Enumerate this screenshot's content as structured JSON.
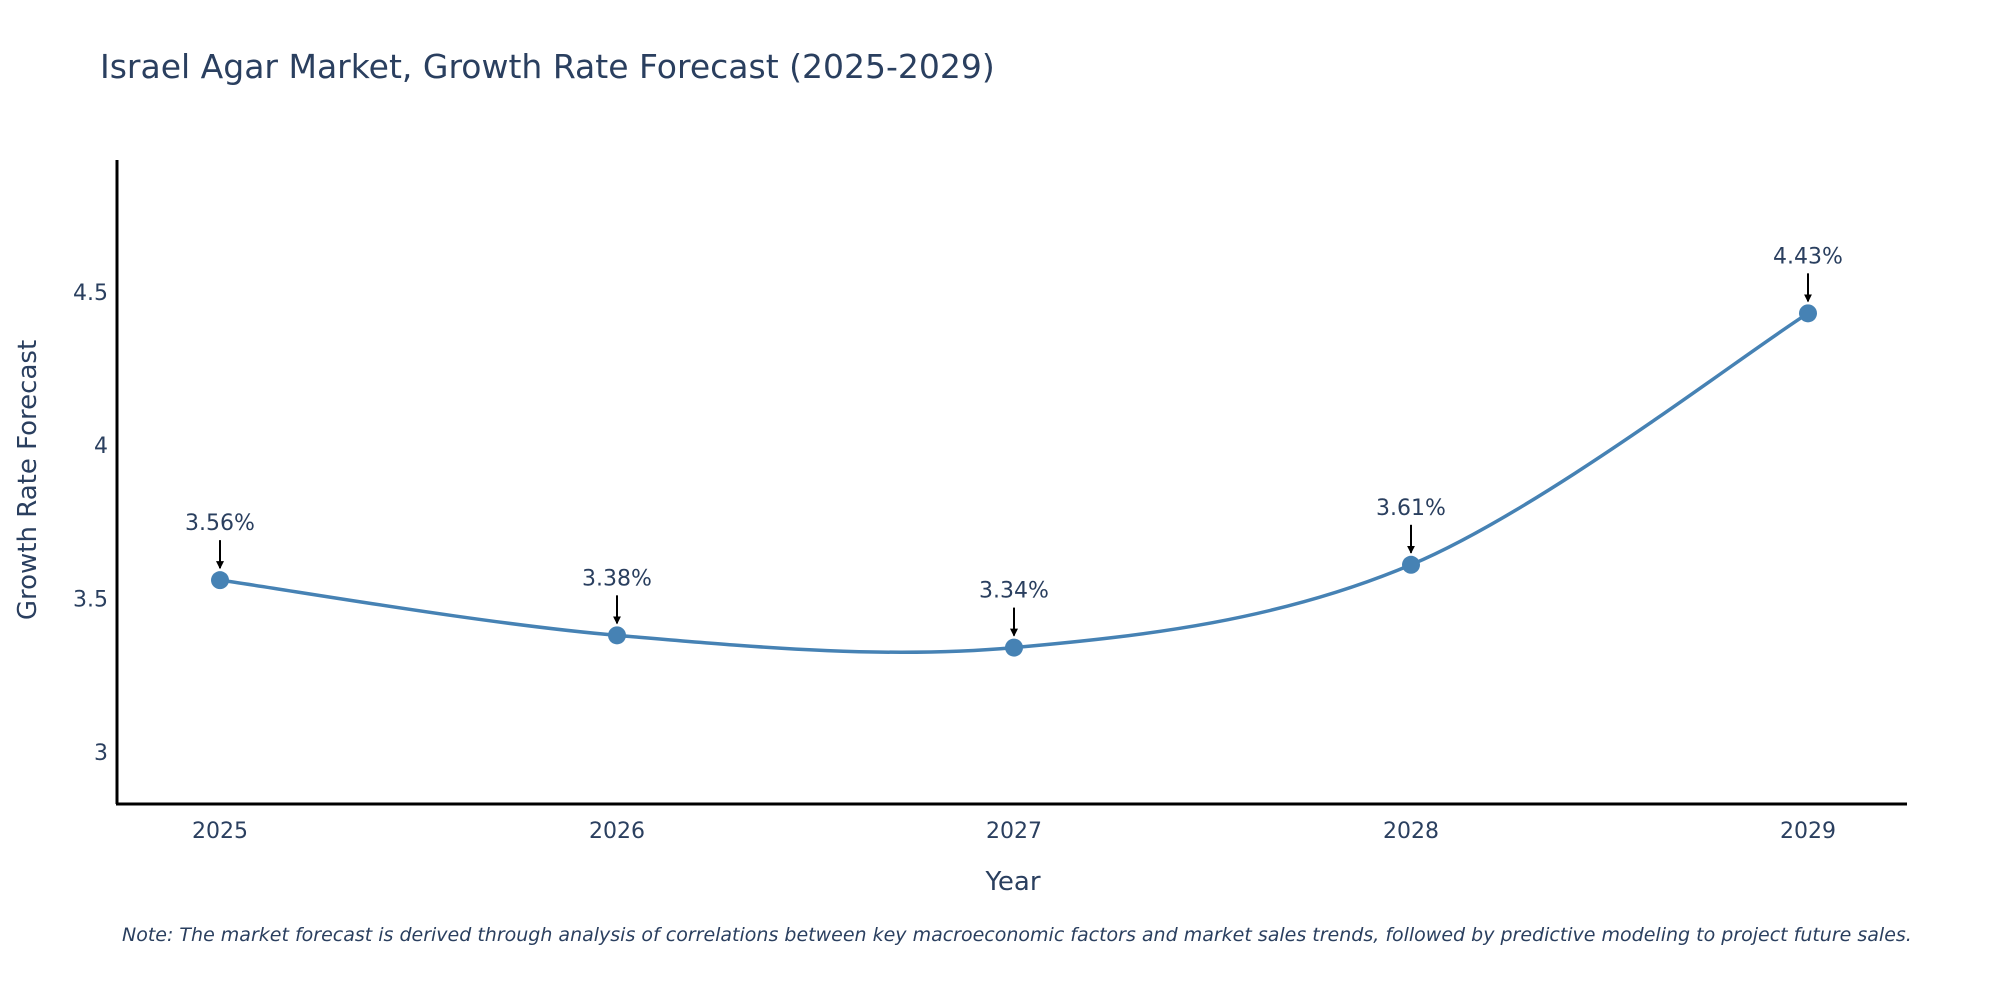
{
  "chart_data": {
    "type": "line",
    "title": "Israel Agar Market, Growth Rate Forecast (2025-2029)",
    "xlabel": "Year",
    "ylabel": "Growth Rate Forecast",
    "categories": [
      "2025",
      "2026",
      "2027",
      "2028",
      "2029"
    ],
    "values": [
      3.56,
      3.38,
      3.34,
      3.61,
      4.43
    ],
    "data_labels": [
      "3.56%",
      "3.38%",
      "3.34%",
      "3.61%",
      "4.43%"
    ],
    "ylim": [
      2.83,
      4.93
    ],
    "yticks": [
      3,
      3.5,
      4,
      4.5
    ],
    "ytick_labels": [
      "3",
      "3.5",
      "4",
      "4.5"
    ],
    "grid": false,
    "legend": "none",
    "line_shape": "spline",
    "colors": {
      "line": "#4682b4",
      "axis": "#000000",
      "text": "#2a3f5f"
    }
  },
  "note": "Note: The market forecast is derived through analysis of correlations between key macroeconomic factors and market sales trends, followed by predictive modeling to project future sales."
}
